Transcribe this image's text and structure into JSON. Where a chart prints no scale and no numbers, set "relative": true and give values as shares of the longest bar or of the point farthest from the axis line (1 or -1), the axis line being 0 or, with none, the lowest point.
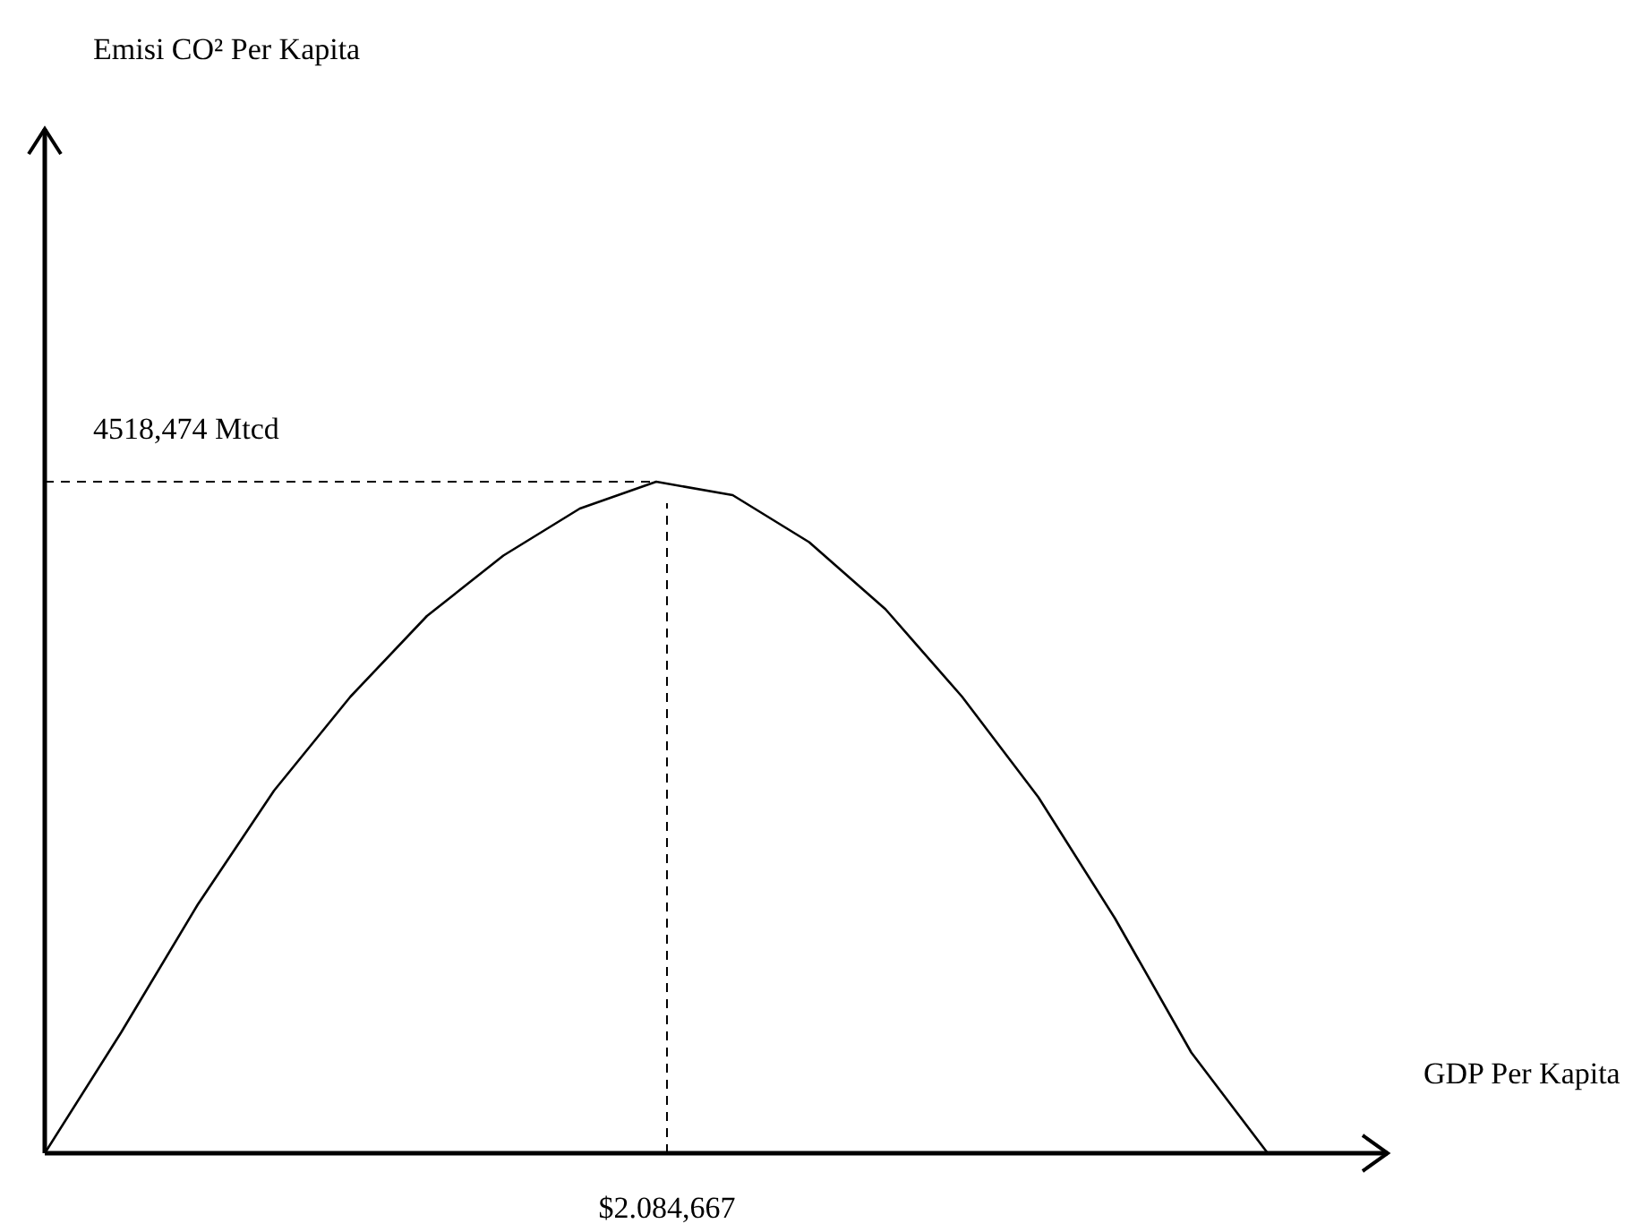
{
  "chart_data": {
    "type": "line",
    "relative": true,
    "xlabel": "GDP Per Kapita",
    "line_style": "solid",
    "marker": "none",
    "categories": [
      null,
      null,
      null,
      null,
      null,
      null,
      null,
      null,
      null,
      null,
      null,
      null,
      null,
      null,
      null,
      null,
      null
    ],
    "series": [
      {
        "color": "#000000",
        "values": [
          0,
          0.18,
          0.37,
          0.54,
          0.68,
          0.8,
          0.89,
          0.96,
          1,
          0.98,
          0.91,
          0.81,
          0.68,
          0.53,
          0.35,
          0.15,
          0
        ]
      }
    ],
    "ref_lines": [
      {
        "axis": "y",
        "value": 1,
        "label": "4518,474 Mtcd",
        "line_style": "dashed",
        "color": "#000000"
      }
    ],
    "annotations": [
      "Emisi CO² Per Kapita",
      "$2.084,667"
    ]
  }
}
